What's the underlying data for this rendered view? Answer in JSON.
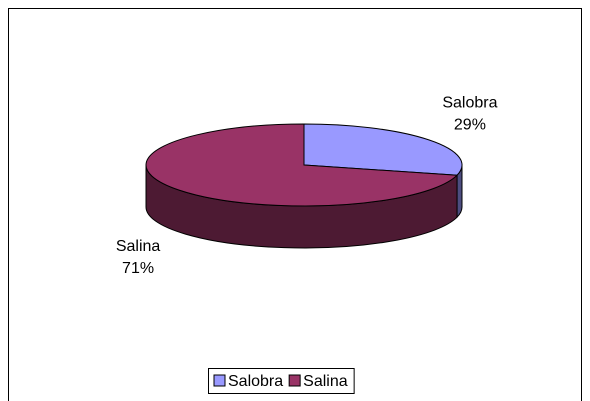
{
  "chart_data": {
    "type": "pie",
    "categories": [
      "Salobra",
      "Salina"
    ],
    "values": [
      29,
      71
    ],
    "value_labels": [
      "29%",
      "71%"
    ],
    "series": [
      {
        "name": "Salobra",
        "color": "#9999FF"
      },
      {
        "name": "Salina",
        "color": "#993366"
      }
    ],
    "legend": "bottom"
  }
}
